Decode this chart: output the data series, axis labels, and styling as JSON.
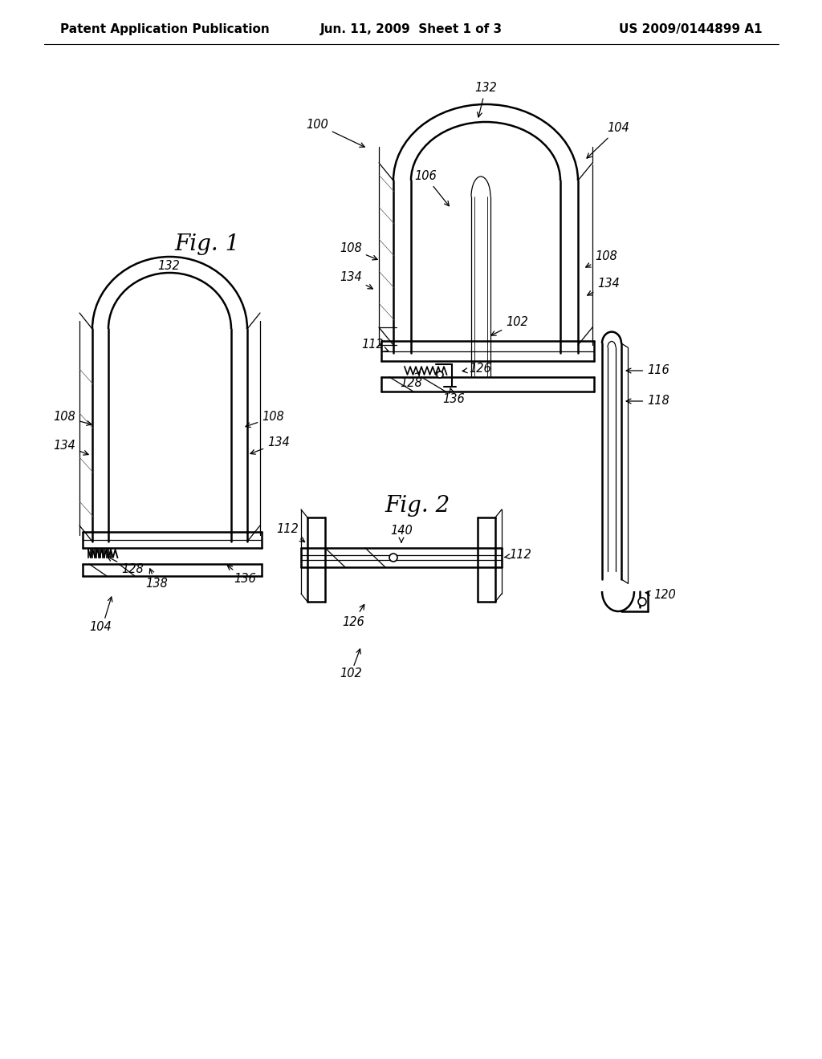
{
  "background_color": "#ffffff",
  "header_left": "Patent Application Publication",
  "header_center": "Jun. 11, 2009  Sheet 1 of 3",
  "header_right": "US 2009/0144899 A1",
  "line_color": "#000000",
  "line_width": 1.8,
  "thin_line": 0.9,
  "label_fontsize": 10.5,
  "fig_label_fontsize": 20
}
